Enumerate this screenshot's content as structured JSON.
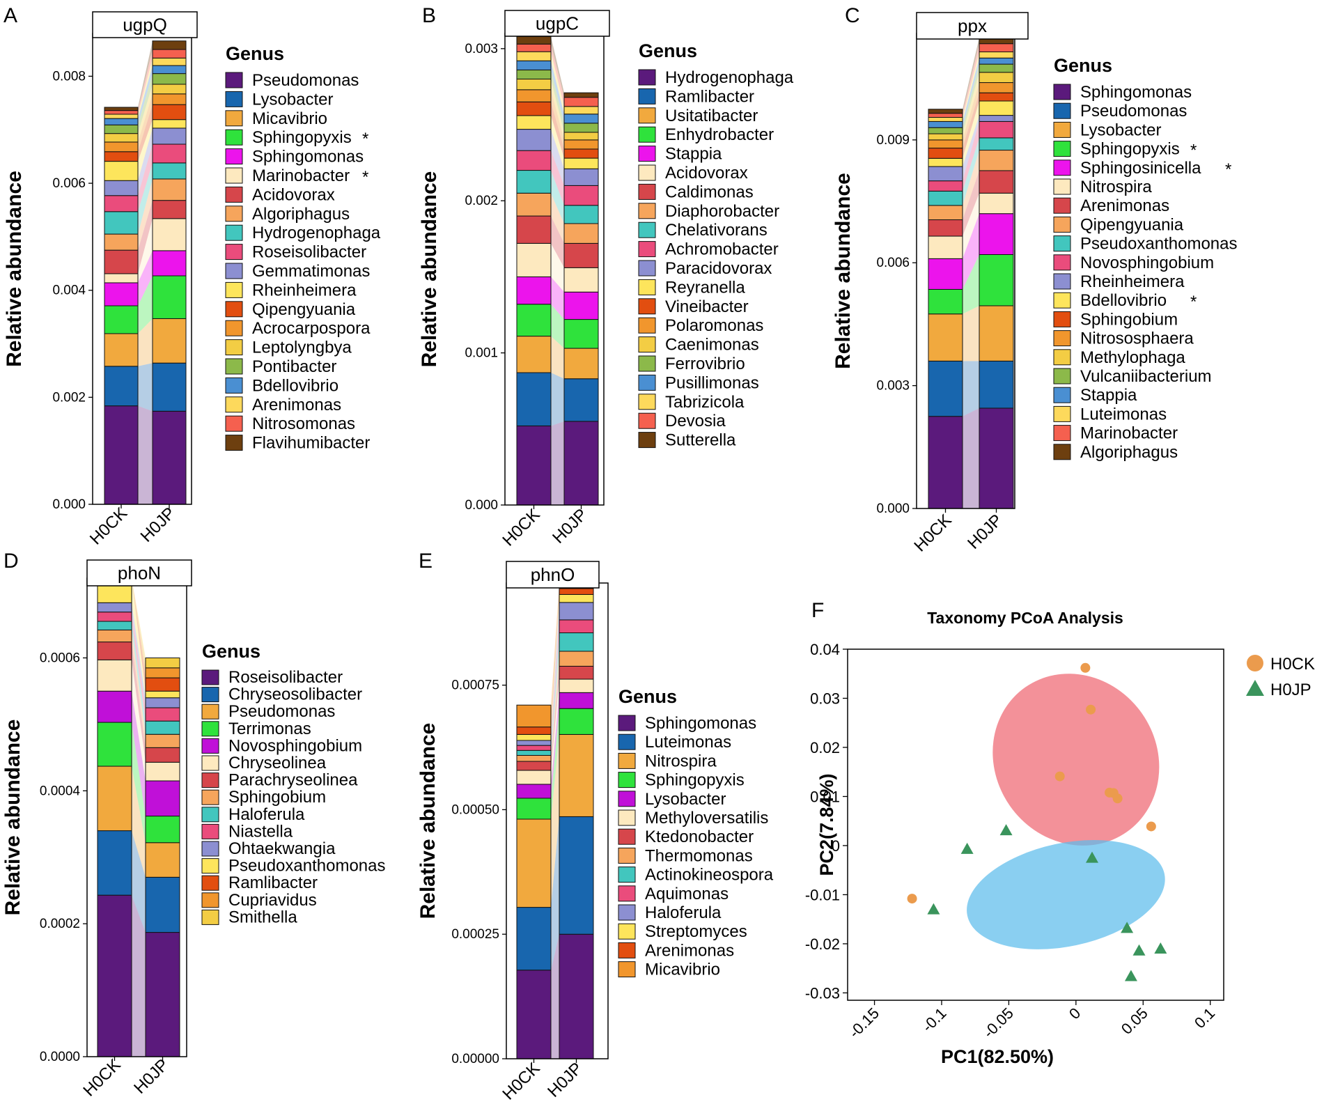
{
  "figure": "Stacked relative-abundance bar charts of genera carrying phosphorus-cycling genes (A–E) and taxonomy PCoA (F)",
  "chart_data": [
    {
      "panel": "A",
      "type": "bar",
      "stacked": true,
      "gene": "ugpQ",
      "ylabel": "Relative abundance",
      "legend_title": "Genus",
      "ylim": [
        0,
        0.0088
      ],
      "yticks": [
        "0.000",
        "0.002",
        "0.004",
        "0.006",
        "0.008"
      ],
      "ytick_values": [
        0,
        0.002,
        0.004,
        0.006,
        0.008
      ],
      "categories": [
        "H0CK",
        "H0JP"
      ],
      "series": [
        {
          "name": "Pseudomonas",
          "color": "#5b1a7c",
          "values": [
            0.00184,
            0.00174
          ]
        },
        {
          "name": "Lysobacter",
          "color": "#1866ae",
          "values": [
            0.00074,
            0.0009
          ]
        },
        {
          "name": "Micavibrio",
          "color": "#f1a93e",
          "values": [
            0.00061,
            0.00083
          ]
        },
        {
          "name": "Sphingopyxis",
          "color": "#2fe23c",
          "values": [
            0.00052,
            0.0008
          ],
          "marked": true
        },
        {
          "name": "Sphingomonas",
          "color": "#ec14ec",
          "values": [
            0.00043,
            0.00047
          ]
        },
        {
          "name": "Marinobacter",
          "color": "#fde9bf",
          "values": [
            0.00017,
            0.0006
          ],
          "marked": true
        },
        {
          "name": "Acidovorax",
          "color": "#d6464b",
          "values": [
            0.00044,
            0.00034
          ]
        },
        {
          "name": "Algoriphagus",
          "color": "#f6a55c",
          "values": [
            0.0003,
            0.0004
          ]
        },
        {
          "name": "Hydrogenophaga",
          "color": "#42c6be",
          "values": [
            0.00042,
            0.0003
          ]
        },
        {
          "name": "Roseisolibacter",
          "color": "#ea4c7c",
          "values": [
            0.0003,
            0.00035
          ]
        },
        {
          "name": "Gemmatimonas",
          "color": "#8c8fd1",
          "values": [
            0.00028,
            0.0003
          ]
        },
        {
          "name": "Rheinheimera",
          "color": "#fde55c",
          "values": [
            0.00036,
            0.00016
          ]
        },
        {
          "name": "Qipengyuania",
          "color": "#e24e10",
          "values": [
            0.00018,
            0.00028
          ]
        },
        {
          "name": "Acrocarpospora",
          "color": "#f1962d",
          "values": [
            0.00018,
            0.0002
          ]
        },
        {
          "name": "Leptolyngbya",
          "color": "#f3cd44",
          "values": [
            0.00016,
            0.00018
          ]
        },
        {
          "name": "Pontibacter",
          "color": "#8cb94a",
          "values": [
            0.00016,
            0.0002
          ]
        },
        {
          "name": "Bdellovibrio",
          "color": "#4a8fd2",
          "values": [
            0.00012,
            0.00015
          ]
        },
        {
          "name": "Arenimonas",
          "color": "#fdd95c",
          "values": [
            8e-05,
            0.00014
          ]
        },
        {
          "name": "Nitrosomonas",
          "color": "#f5604f",
          "values": [
            7e-05,
            0.00016
          ]
        },
        {
          "name": "Flavihumibacter",
          "color": "#6d3f0f",
          "values": [
            6e-05,
            0.00016
          ]
        }
      ]
    },
    {
      "panel": "B",
      "type": "bar",
      "stacked": true,
      "gene": "ugpC",
      "ylabel": "Relative abundance",
      "legend_title": "Genus",
      "ylim": [
        0,
        0.0031
      ],
      "yticks": [
        "0.000",
        "0.001",
        "0.002",
        "0.003"
      ],
      "ytick_values": [
        0,
        0.001,
        0.002,
        0.003
      ],
      "categories": [
        "H0CK",
        "H0JP"
      ],
      "series": [
        {
          "name": "Hydrogenophaga",
          "color": "#5b1a7c",
          "values": [
            0.00052,
            0.00055
          ]
        },
        {
          "name": "Ramlibacter",
          "color": "#1866ae",
          "values": [
            0.00035,
            0.00028
          ]
        },
        {
          "name": "Usitatibacter",
          "color": "#f1a93e",
          "values": [
            0.00024,
            0.0002
          ]
        },
        {
          "name": "Enhydrobacter",
          "color": "#2fe23c",
          "values": [
            0.00021,
            0.00019
          ]
        },
        {
          "name": "Stappia",
          "color": "#ec14ec",
          "values": [
            0.00018,
            0.00018
          ]
        },
        {
          "name": "Acidovorax",
          "color": "#fde9bf",
          "values": [
            0.00022,
            0.00016
          ]
        },
        {
          "name": "Caldimonas",
          "color": "#d6464b",
          "values": [
            0.00018,
            0.00016
          ]
        },
        {
          "name": "Diaphorobacter",
          "color": "#f6a55c",
          "values": [
            0.00015,
            0.00013
          ]
        },
        {
          "name": "Chelativorans",
          "color": "#42c6be",
          "values": [
            0.00015,
            0.00012
          ]
        },
        {
          "name": "Achromobacter",
          "color": "#ea4c7c",
          "values": [
            0.00013,
            0.00013
          ]
        },
        {
          "name": "Paracidovorax",
          "color": "#8c8fd1",
          "values": [
            0.00014,
            0.00011
          ]
        },
        {
          "name": "Reyranella",
          "color": "#fde55c",
          "values": [
            9e-05,
            7e-05
          ]
        },
        {
          "name": "Vineibacter",
          "color": "#e24e10",
          "values": [
            9e-05,
            6e-05
          ]
        },
        {
          "name": "Polaromonas",
          "color": "#f1962d",
          "values": [
            8e-05,
            6e-05
          ]
        },
        {
          "name": "Caenimonas",
          "color": "#f3cd44",
          "values": [
            7e-05,
            5e-05
          ]
        },
        {
          "name": "Ferrovibrio",
          "color": "#8cb94a",
          "values": [
            6e-05,
            6e-05
          ]
        },
        {
          "name": "Pusillimonas",
          "color": "#4a8fd2",
          "values": [
            6e-05,
            6e-05
          ]
        },
        {
          "name": "Tabrizicola",
          "color": "#fdd95c",
          "values": [
            6e-05,
            5e-05
          ]
        },
        {
          "name": "Devosia",
          "color": "#f5604f",
          "values": [
            5e-05,
            6e-05
          ]
        },
        {
          "name": "Sutterella",
          "color": "#6d3f0f",
          "values": [
            5e-05,
            3e-05
          ]
        }
      ]
    },
    {
      "panel": "C",
      "type": "bar",
      "stacked": true,
      "gene": "ppx",
      "ylabel": "Relative abundance",
      "legend_title": "Genus",
      "ylim": [
        0,
        0.0116
      ],
      "yticks": [
        "0.000",
        "0.003",
        "0.006",
        "0.009"
      ],
      "ytick_values": [
        0,
        0.003,
        0.006,
        0.009
      ],
      "categories": [
        "H0CK",
        "H0JP"
      ],
      "series": [
        {
          "name": "Sphingomonas",
          "color": "#5b1a7c",
          "values": [
            0.00225,
            0.00245
          ]
        },
        {
          "name": "Pseudomonas",
          "color": "#1866ae",
          "values": [
            0.00135,
            0.00115
          ]
        },
        {
          "name": "Lysobacter",
          "color": "#f1a93e",
          "values": [
            0.00115,
            0.00135
          ]
        },
        {
          "name": "Sphingopyxis",
          "color": "#2fe23c",
          "values": [
            0.0006,
            0.00125
          ],
          "marked": true
        },
        {
          "name": "Sphingosinicella",
          "color": "#ec14ec",
          "values": [
            0.00075,
            0.001
          ],
          "marked": true
        },
        {
          "name": "Nitrospira",
          "color": "#fde9bf",
          "values": [
            0.00055,
            0.0005
          ]
        },
        {
          "name": "Arenimonas",
          "color": "#d6464b",
          "values": [
            0.0004,
            0.00055
          ]
        },
        {
          "name": "Qipengyuania",
          "color": "#f6a55c",
          "values": [
            0.00035,
            0.0005
          ]
        },
        {
          "name": "Pseudoxanthomonas",
          "color": "#42c6be",
          "values": [
            0.00035,
            0.0003
          ]
        },
        {
          "name": "Novosphingobium",
          "color": "#ea4c7c",
          "values": [
            0.00025,
            0.0004
          ]
        },
        {
          "name": "Rheinheimera",
          "color": "#8c8fd1",
          "values": [
            0.00035,
            0.00015
          ]
        },
        {
          "name": "Bdellovibrio",
          "color": "#fde55c",
          "values": [
            0.0002,
            0.00035
          ],
          "marked": true
        },
        {
          "name": "Sphingobium",
          "color": "#e24e10",
          "values": [
            0.00025,
            0.0002
          ]
        },
        {
          "name": "Nitrososphaera",
          "color": "#f1962d",
          "values": [
            0.0002,
            0.00025
          ]
        },
        {
          "name": "Methylophaga",
          "color": "#f3cd44",
          "values": [
            0.00015,
            0.00025
          ]
        },
        {
          "name": "Vulcaniibacterium",
          "color": "#8cb94a",
          "values": [
            0.00015,
            0.0002
          ]
        },
        {
          "name": "Stappia",
          "color": "#4a8fd2",
          "values": [
            0.00015,
            0.00015
          ]
        },
        {
          "name": "Luteimonas",
          "color": "#fdd95c",
          "values": [
            0.0001,
            0.00015
          ]
        },
        {
          "name": "Marinobacter",
          "color": "#f5604f",
          "values": [
            0.0001,
            0.0002
          ]
        },
        {
          "name": "Algoriphagus",
          "color": "#6d3f0f",
          "values": [
            0.0001,
            0.00015
          ]
        }
      ]
    },
    {
      "panel": "D",
      "type": "bar",
      "stacked": true,
      "gene": "phoN",
      "ylabel": "Relative abundance",
      "legend_title": "Genus",
      "ylim": [
        0,
        0.00072
      ],
      "yticks": [
        "0.0000",
        "0.0002",
        "0.0004",
        "0.0006"
      ],
      "ytick_values": [
        0,
        0.0002,
        0.0004,
        0.0006
      ],
      "categories": [
        "H0CK",
        "H0JP"
      ],
      "series": [
        {
          "name": "Roseisolibacter",
          "color": "#5b1a7c",
          "values": [
            0.000243,
            0.000187
          ]
        },
        {
          "name": "Chryseosolibacter",
          "color": "#1866ae",
          "values": [
            9.7e-05,
            8.3e-05
          ]
        },
        {
          "name": "Pseudomonas",
          "color": "#f1a93e",
          "values": [
            9.7e-05,
            5.2e-05
          ]
        },
        {
          "name": "Terrimonas",
          "color": "#2fe23c",
          "values": [
            6.6e-05,
            4e-05
          ]
        },
        {
          "name": "Novosphingobium",
          "color": "#c010d8",
          "values": [
            4.7e-05,
            5.3e-05
          ]
        },
        {
          "name": "Chryseolinea",
          "color": "#fde9bf",
          "values": [
            4.7e-05,
            2.8e-05
          ]
        },
        {
          "name": "Parachryseolinea",
          "color": "#d6464b",
          "values": [
            2.7e-05,
            2.2e-05
          ]
        },
        {
          "name": "Sphingobium",
          "color": "#f6a55c",
          "values": [
            1.8e-05,
            2e-05
          ]
        },
        {
          "name": "Haloferula",
          "color": "#42c6be",
          "values": [
            1.3e-05,
            2e-05
          ]
        },
        {
          "name": "Niastella",
          "color": "#ea4c7c",
          "values": [
            1.4e-05,
            2e-05
          ]
        },
        {
          "name": "Ohtaekwangia",
          "color": "#8c8fd1",
          "values": [
            1.4e-05,
            1.5e-05
          ]
        },
        {
          "name": "Pseudoxanthomonas",
          "color": "#fde55c",
          "values": [
            3.7e-05,
            1e-05
          ]
        },
        {
          "name": "Ramlibacter",
          "color": "#e24e10",
          "values": [
            0.0,
            2e-05
          ]
        },
        {
          "name": "Cupriavidus",
          "color": "#f1962d",
          "values": [
            0.0,
            1.5e-05
          ]
        },
        {
          "name": "Smithella",
          "color": "#f3cd44",
          "values": [
            0.0,
            1.5e-05
          ]
        }
      ]
    },
    {
      "panel": "E",
      "type": "bar",
      "stacked": true,
      "gene": "phnO",
      "ylabel": "Relative abundance",
      "legend_title": "Genus",
      "ylim": [
        0,
        0.000955
      ],
      "yticks": [
        "0.00000",
        "0.00025",
        "0.00050",
        "0.00075"
      ],
      "ytick_values": [
        0,
        0.00025,
        0.0005,
        0.00075
      ],
      "categories": [
        "H0CK",
        "H0JP"
      ],
      "series": [
        {
          "name": "Sphingomonas",
          "color": "#5b1a7c",
          "values": [
            0.000178,
            0.00025
          ]
        },
        {
          "name": "Luteimonas",
          "color": "#1866ae",
          "values": [
            0.000126,
            0.000236
          ]
        },
        {
          "name": "Nitrospira",
          "color": "#f1a93e",
          "values": [
            0.000177,
            0.000165
          ]
        },
        {
          "name": "Sphingopyxis",
          "color": "#2fe23c",
          "values": [
            4.2e-05,
            5.2e-05
          ]
        },
        {
          "name": "Lysobacter",
          "color": "#c010d8",
          "values": [
            2.8e-05,
            3.2e-05
          ]
        },
        {
          "name": "Methyloversatilis",
          "color": "#fde9bf",
          "values": [
            2.8e-05,
            2.7e-05
          ]
        },
        {
          "name": "Ktedonobacter",
          "color": "#d6464b",
          "values": [
            1.8e-05,
            2.6e-05
          ]
        },
        {
          "name": "Thermomonas",
          "color": "#f6a55c",
          "values": [
            1.2e-05,
            3e-05
          ]
        },
        {
          "name": "Actinokineospora",
          "color": "#42c6be",
          "values": [
            1e-05,
            3.7e-05
          ]
        },
        {
          "name": "Aquimonas",
          "color": "#ea4c7c",
          "values": [
            1e-05,
            2.6e-05
          ]
        },
        {
          "name": "Haloferula",
          "color": "#8c8fd1",
          "values": [
            1e-05,
            3.5e-05
          ]
        },
        {
          "name": "Streptomyces",
          "color": "#fde55c",
          "values": [
            1.2e-05,
            1.6e-05
          ]
        },
        {
          "name": "Arenimonas",
          "color": "#e24e10",
          "values": [
            1.5e-05,
            1.2e-05
          ]
        },
        {
          "name": "Micavibrio",
          "color": "#f1962d",
          "values": [
            4.4e-05,
            1.1e-05
          ]
        }
      ]
    },
    {
      "panel": "F",
      "type": "scatter",
      "title": "Taxonomy PCoA Analysis",
      "xlabel": "PC1(82.50%)",
      "ylabel": "PC2(7.84%)",
      "xlim": [
        -0.17,
        0.11
      ],
      "ylim": [
        -0.0315,
        0.04
      ],
      "xticks": [
        "-0.15",
        "-0.1",
        "-0.05",
        "0",
        "0.05",
        "0.1"
      ],
      "xtick_values": [
        -0.15,
        -0.1,
        -0.05,
        0,
        0.05,
        0.1
      ],
      "yticks": [
        "0.04",
        "0.03",
        "0.02",
        "0.01",
        "0",
        "-0.01",
        "-0.02",
        "-0.03"
      ],
      "ytick_values": [
        0.04,
        0.03,
        0.02,
        0.01,
        0,
        -0.01,
        -0.02,
        -0.03
      ],
      "series": [
        {
          "name": "H0CK",
          "marker": "circle",
          "color": "#eb9b4d",
          "points": [
            [
              0.007,
              0.0362
            ],
            [
              0.011,
              0.0277
            ],
            [
              -0.012,
              0.0141
            ],
            [
              0.025,
              0.0108
            ],
            [
              0.028,
              0.0107
            ],
            [
              0.031,
              0.0096
            ],
            [
              0.056,
              0.0039
            ],
            [
              -0.122,
              -0.0108
            ]
          ]
        },
        {
          "name": "H0JP",
          "marker": "triangle",
          "color": "#3a945c",
          "points": [
            [
              -0.052,
              0.0031
            ],
            [
              -0.081,
              -0.0007
            ],
            [
              0.012,
              -0.0025
            ],
            [
              -0.106,
              -0.013
            ],
            [
              0.038,
              -0.0168
            ],
            [
              0.047,
              -0.0214
            ],
            [
              0.063,
              -0.021
            ],
            [
              0.041,
              -0.0266
            ]
          ]
        }
      ],
      "ellipses": [
        {
          "group": "H0CK",
          "color": "#ee6672",
          "center": [
            0.0,
            0.0175
          ],
          "rx": 0.06,
          "ry": 0.018,
          "angle_deg": -35
        },
        {
          "group": "H0JP",
          "color": "#5dbdeb",
          "center": [
            -0.0075,
            -0.01
          ],
          "rx": 0.075,
          "ry": 0.0105,
          "angle_deg": -12
        }
      ]
    }
  ]
}
